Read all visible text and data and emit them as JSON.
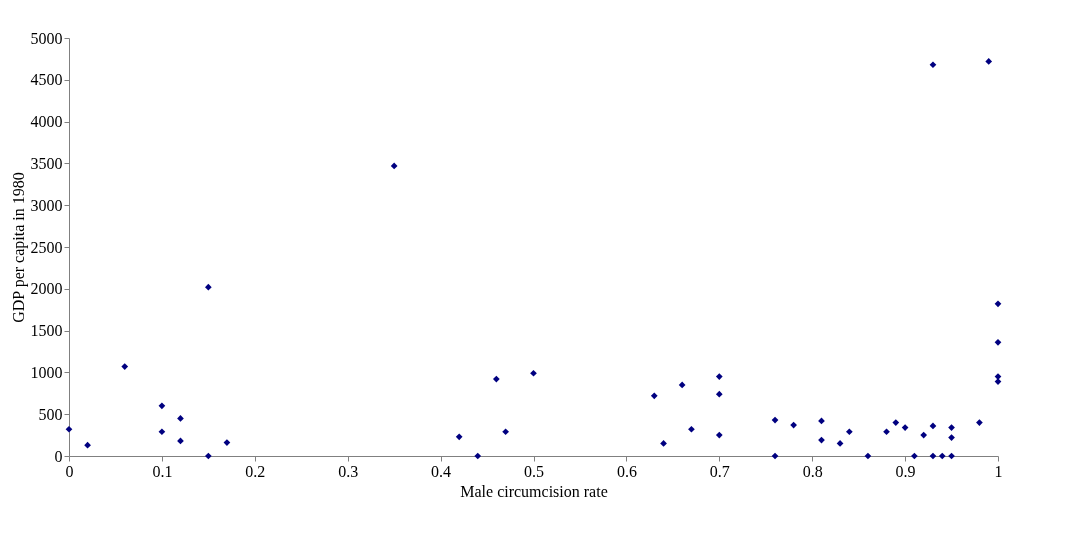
{
  "chart_data": {
    "type": "scatter",
    "xlabel": "Male circumcision rate",
    "ylabel": "GDP per capita in 1980",
    "x": [
      0,
      0.02,
      0.06,
      0.1,
      0.1,
      0.12,
      0.12,
      0.15,
      0.15,
      0.17,
      0.35,
      0.42,
      0.44,
      0.46,
      0.47,
      0.5,
      0.63,
      0.64,
      0.66,
      0.67,
      0.7,
      0.7,
      0.7,
      0.76,
      0.76,
      0.78,
      0.81,
      0.81,
      0.83,
      0.84,
      0.86,
      0.88,
      0.89,
      0.9,
      0.91,
      0.92,
      0.93,
      0.93,
      0.93,
      0.94,
      0.95,
      0.95,
      0.95,
      0.98,
      0.99,
      1,
      1,
      1,
      1
    ],
    "series": [
      {
        "color": "#000080",
        "values": [
          320,
          130,
          1070,
          600,
          290,
          450,
          180,
          0,
          2020,
          160,
          3470,
          230,
          0,
          920,
          290,
          990,
          720,
          150,
          850,
          320,
          950,
          740,
          250,
          430,
          0,
          370,
          420,
          190,
          150,
          290,
          0,
          290,
          400,
          340,
          0,
          250,
          360,
          0,
          4680,
          0,
          340,
          220,
          0,
          400,
          4720,
          1820,
          1360,
          950,
          890
        ]
      }
    ],
    "xlim": [
      0,
      1
    ],
    "xticks": [
      0,
      0.1,
      0.2,
      0.3,
      0.4,
      0.5,
      0.6,
      0.7,
      0.8,
      0.9,
      1
    ],
    "ylim": [
      0,
      5000
    ],
    "yticks": [
      0,
      500,
      1000,
      1500,
      2000,
      2500,
      3000,
      3500,
      4000,
      4500,
      5000
    ],
    "grid": false,
    "marker": "diamond"
  }
}
